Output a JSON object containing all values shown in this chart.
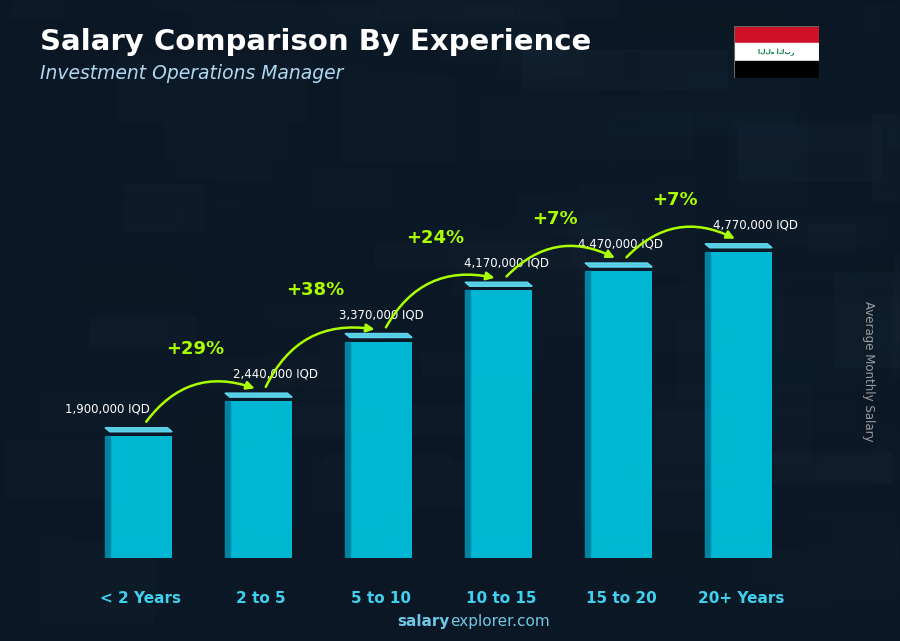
{
  "title": "Salary Comparison By Experience",
  "subtitle": "Investment Operations Manager",
  "categories": [
    "< 2 Years",
    "2 to 5",
    "5 to 10",
    "10 to 15",
    "15 to 20",
    "20+ Years"
  ],
  "values": [
    1900000,
    2440000,
    3370000,
    4170000,
    4470000,
    4770000
  ],
  "labels": [
    "1,900,000 IQD",
    "2,440,000 IQD",
    "3,370,000 IQD",
    "4,170,000 IQD",
    "4,470,000 IQD",
    "4,770,000 IQD"
  ],
  "pct_changes": [
    null,
    "+29%",
    "+38%",
    "+24%",
    "+7%",
    "+7%"
  ],
  "bar_color": "#00c0dc",
  "bar_side_color": "#0088aa",
  "bar_top_color": "#60e0f8",
  "bg_dark": "#0d1b2a",
  "title_color": "#ffffff",
  "subtitle_color": "#b0d8f0",
  "label_color": "#ffffff",
  "pct_color": "#aaff00",
  "tick_color": "#40d0f0",
  "ylabel_text": "Average Monthly Salary",
  "footer_salary": "salary",
  "footer_rest": "explorer.com",
  "ylim_max": 5800000,
  "fig_width": 9.0,
  "fig_height": 6.41
}
